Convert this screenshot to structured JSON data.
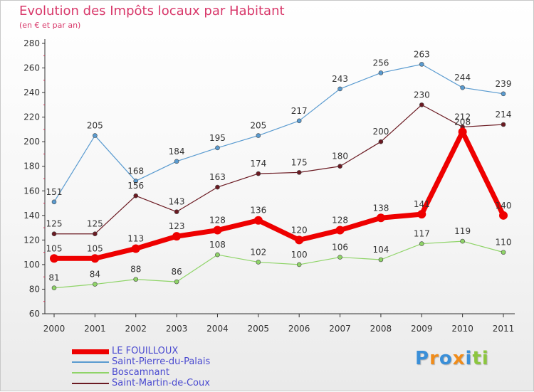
{
  "chart_data": {
    "type": "line",
    "title": "Evolution des Impôts locaux par Habitant",
    "subtitle": "(en € et par an)",
    "xlabel": "",
    "ylabel": "",
    "x": [
      "2000",
      "2001",
      "2002",
      "2003",
      "2004",
      "2005",
      "2006",
      "2007",
      "2008",
      "2009",
      "2010",
      "2011"
    ],
    "ylim": [
      60,
      280
    ],
    "yticks": [
      60,
      80,
      100,
      120,
      140,
      160,
      180,
      200,
      220,
      240,
      260,
      280
    ],
    "grid": false,
    "legend_position": "bottom-left",
    "series": [
      {
        "name": "Saint-Pierre-du-Palais",
        "color": "#5a9bd0",
        "values": [
          151,
          205,
          168,
          184,
          195,
          205,
          217,
          243,
          256,
          263,
          244,
          239
        ]
      },
      {
        "name": "Saint-Martin-de-Coux",
        "color": "#6b1a22",
        "values": [
          125,
          125,
          156,
          143,
          163,
          174,
          175,
          180,
          200,
          230,
          212,
          214
        ]
      },
      {
        "name": "Boscamnant",
        "color": "#8fd468",
        "values": [
          81,
          84,
          88,
          86,
          108,
          102,
          100,
          106,
          104,
          117,
          119,
          110
        ]
      },
      {
        "name": "LE FOUILLOUX",
        "color": "#ee0000",
        "values": [
          105,
          105,
          113,
          123,
          128,
          136,
          120,
          128,
          138,
          141,
          208,
          140
        ]
      }
    ],
    "legend_order": [
      "LE FOUILLOUX",
      "Saint-Pierre-du-Palais",
      "Boscamnant",
      "Saint-Martin-de-Coux"
    ]
  },
  "logo": {
    "letters": [
      "P",
      "r",
      "o",
      "x",
      "i",
      "t",
      "i"
    ],
    "colors": [
      "#3a8fd8",
      "#f08c1a",
      "#3a8fd8",
      "#f08c1a",
      "#3a8fd8",
      "#8cc63f",
      "#8cc63f"
    ]
  }
}
